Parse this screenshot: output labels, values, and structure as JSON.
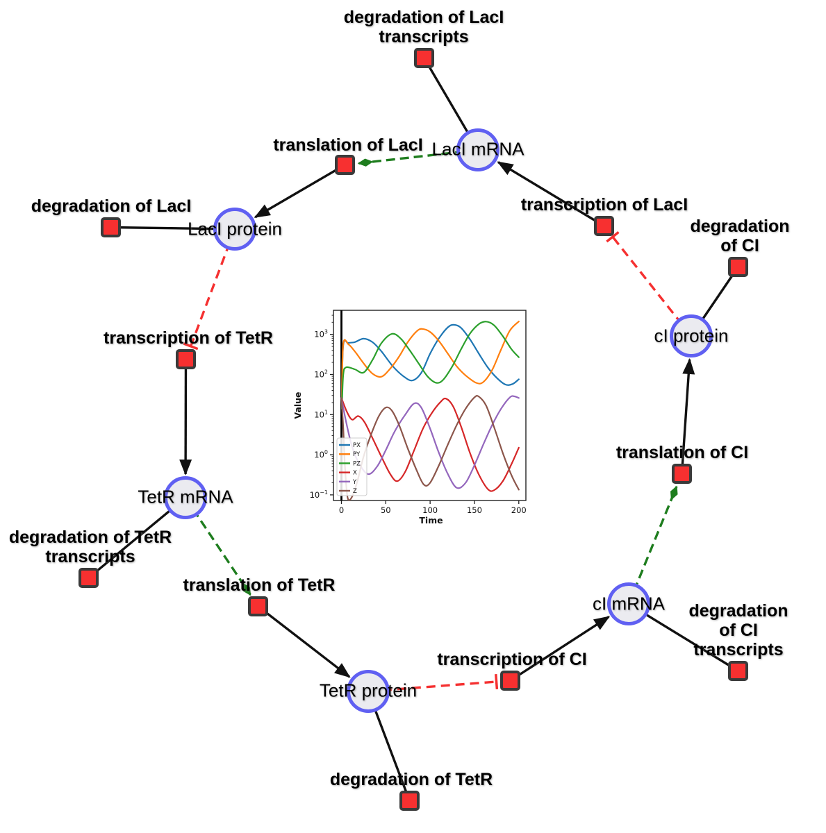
{
  "diagram": {
    "species": {
      "lacI_mRNA": {
        "label": "LacI mRNA"
      },
      "lacI_protein": {
        "label": "LacI protein"
      },
      "tetR_mRNA": {
        "label": "TetR mRNA"
      },
      "tetR_protein": {
        "label": "TetR protein"
      },
      "cI_mRNA": {
        "label": "cI mRNA"
      },
      "cI_protein": {
        "label": "cI protein"
      }
    },
    "reactions": {
      "deg_lacI_tr": {
        "label": "degradation of LacI\ntranscripts"
      },
      "transl_lacI": {
        "label": "translation of LacI"
      },
      "deg_lacI": {
        "label": "degradation of LacI"
      },
      "transc_lacI": {
        "label": "transcription of LacI"
      },
      "deg_cI": {
        "label": "degradation of CI"
      },
      "transc_tetR": {
        "label": "transcription of TetR"
      },
      "deg_tetR_tr": {
        "label": "degradation of TetR\ntranscripts"
      },
      "transl_tetR": {
        "label": "translation of TetR"
      },
      "deg_tetR": {
        "label": "degradation of TetR"
      },
      "transc_cI": {
        "label": "transcription of CI"
      },
      "deg_cI_tr": {
        "label": "degradation of CI\ntranscripts"
      },
      "transl_cI": {
        "label": "translation of CI"
      }
    },
    "edges": [
      {
        "source": "lacI_mRNA",
        "target": "deg_lacI_tr",
        "type": "reactant"
      },
      {
        "source": "lacI_mRNA",
        "target": "transl_lacI",
        "type": "modifier"
      },
      {
        "source": "transl_lacI",
        "target": "lacI_protein",
        "type": "product"
      },
      {
        "source": "transc_lacI",
        "target": "lacI_mRNA",
        "type": "product"
      },
      {
        "source": "lacI_protein",
        "target": "deg_lacI",
        "type": "reactant"
      },
      {
        "source": "lacI_protein",
        "target": "transc_tetR",
        "type": "inhibition"
      },
      {
        "source": "transc_tetR",
        "target": "tetR_mRNA",
        "type": "product"
      },
      {
        "source": "tetR_mRNA",
        "target": "deg_tetR_tr",
        "type": "reactant"
      },
      {
        "source": "tetR_mRNA",
        "target": "transl_tetR",
        "type": "modifier"
      },
      {
        "source": "transl_tetR",
        "target": "tetR_protein",
        "type": "product"
      },
      {
        "source": "tetR_protein",
        "target": "deg_tetR",
        "type": "reactant"
      },
      {
        "source": "tetR_protein",
        "target": "transc_cI",
        "type": "inhibition"
      },
      {
        "source": "transc_cI",
        "target": "cI_mRNA",
        "type": "product"
      },
      {
        "source": "cI_mRNA",
        "target": "deg_cI_tr",
        "type": "reactant"
      },
      {
        "source": "cI_mRNA",
        "target": "transl_cI",
        "type": "modifier"
      },
      {
        "source": "transl_cI",
        "target": "cI_protein",
        "type": "product"
      },
      {
        "source": "cI_protein",
        "target": "deg_cI",
        "type": "reactant"
      },
      {
        "source": "cI_protein",
        "target": "transc_lacI",
        "type": "inhibition"
      }
    ],
    "colors": {
      "species_fill": "#ebebf0",
      "species_border": "#6060f2",
      "reaction_fill": "#f73030",
      "reaction_border": "#3a3a3a",
      "edge_black": "#111111",
      "modifier_green": "#1e7d1e",
      "inhibition_red": "#f53030",
      "background": "#ffffff"
    }
  },
  "chart_data": {
    "type": "line",
    "title": "",
    "xlabel": "Time",
    "ylabel": "Value",
    "y_scale": "log",
    "grid": false,
    "legend_position": "lower left",
    "x_ticks": [
      "0",
      "50",
      "100",
      "150",
      "200"
    ],
    "y_tick_exponents": [
      "−1",
      "0",
      "1",
      "2",
      "3"
    ],
    "x_range": [
      -9,
      208
    ],
    "y_log_range": [
      -1.14,
      3.6
    ],
    "initial_spike_at_x": 0,
    "series": [
      {
        "name": "PX",
        "color": "#1f77b4",
        "points": [
          [
            0.5,
            18
          ],
          [
            2,
            520
          ],
          [
            8,
            610
          ],
          [
            15,
            640
          ],
          [
            25,
            780
          ],
          [
            35,
            640
          ],
          [
            45,
            380
          ],
          [
            58,
            160
          ],
          [
            70,
            90
          ],
          [
            80,
            71
          ],
          [
            90,
            110
          ],
          [
            100,
            330
          ],
          [
            110,
            800
          ],
          [
            120,
            1500
          ],
          [
            127,
            1730
          ],
          [
            135,
            1450
          ],
          [
            145,
            750
          ],
          [
            155,
            330
          ],
          [
            165,
            150
          ],
          [
            175,
            83
          ],
          [
            185,
            56
          ],
          [
            193,
            58
          ],
          [
            200,
            76
          ]
        ]
      },
      {
        "name": "PY",
        "color": "#ff7f0e",
        "points": [
          [
            0.5,
            18
          ],
          [
            2,
            560
          ],
          [
            8,
            560
          ],
          [
            15,
            380
          ],
          [
            25,
            190
          ],
          [
            35,
            105
          ],
          [
            45,
            88
          ],
          [
            55,
            140
          ],
          [
            65,
            280
          ],
          [
            75,
            650
          ],
          [
            85,
            1200
          ],
          [
            91,
            1370
          ],
          [
            100,
            1150
          ],
          [
            110,
            680
          ],
          [
            120,
            330
          ],
          [
            130,
            160
          ],
          [
            140,
            95
          ],
          [
            152,
            62
          ],
          [
            160,
            65
          ],
          [
            170,
            130
          ],
          [
            180,
            420
          ],
          [
            190,
            1250
          ],
          [
            200,
            2100
          ]
        ]
      },
      {
        "name": "PZ",
        "color": "#2ca02c",
        "points": [
          [
            0.5,
            14
          ],
          [
            2,
            95
          ],
          [
            5,
            150
          ],
          [
            15,
            135
          ],
          [
            25,
            112
          ],
          [
            35,
            230
          ],
          [
            45,
            600
          ],
          [
            57,
            1030
          ],
          [
            67,
            780
          ],
          [
            77,
            400
          ],
          [
            87,
            190
          ],
          [
            97,
            90
          ],
          [
            107,
            62
          ],
          [
            115,
            75
          ],
          [
            125,
            160
          ],
          [
            135,
            430
          ],
          [
            145,
            1050
          ],
          [
            155,
            1800
          ],
          [
            163,
            2080
          ],
          [
            172,
            1700
          ],
          [
            182,
            900
          ],
          [
            192,
            420
          ],
          [
            200,
            270
          ]
        ]
      },
      {
        "name": "X",
        "color": "#d62728",
        "points": [
          [
            0,
            26
          ],
          [
            6,
            12
          ],
          [
            12,
            7.5
          ],
          [
            19,
            9.2
          ],
          [
            26,
            6.5
          ],
          [
            35,
            2.6
          ],
          [
            45,
            0.9
          ],
          [
            55,
            0.33
          ],
          [
            63,
            0.22
          ],
          [
            72,
            0.38
          ],
          [
            82,
            1.3
          ],
          [
            92,
            4.5
          ],
          [
            102,
            11
          ],
          [
            112,
            21
          ],
          [
            118,
            25
          ],
          [
            126,
            16
          ],
          [
            135,
            5
          ],
          [
            145,
            1.1
          ],
          [
            155,
            0.32
          ],
          [
            165,
            0.14
          ],
          [
            172,
            0.13
          ],
          [
            182,
            0.22
          ],
          [
            192,
            0.6
          ],
          [
            200,
            1.5
          ]
        ]
      },
      {
        "name": "Y",
        "color": "#9467bd",
        "points": [
          [
            0,
            26
          ],
          [
            5,
            7
          ],
          [
            12,
            1.6
          ],
          [
            20,
            0.6
          ],
          [
            30,
            0.33
          ],
          [
            40,
            0.5
          ],
          [
            50,
            1.3
          ],
          [
            60,
            3.8
          ],
          [
            72,
            10
          ],
          [
            82,
            19
          ],
          [
            90,
            15
          ],
          [
            100,
            4.5
          ],
          [
            110,
            1.1
          ],
          [
            120,
            0.33
          ],
          [
            130,
            0.15
          ],
          [
            140,
            0.2
          ],
          [
            150,
            0.55
          ],
          [
            160,
            1.8
          ],
          [
            170,
            5.5
          ],
          [
            180,
            14
          ],
          [
            190,
            27
          ],
          [
            195,
            28.5
          ],
          [
            200,
            26
          ]
        ]
      },
      {
        "name": "Z",
        "color": "#8c564b",
        "points": [
          [
            0,
            26
          ],
          [
            2,
            5
          ],
          [
            4,
            0.5
          ],
          [
            7,
            0.085
          ],
          [
            12,
            0.09
          ],
          [
            18,
            0.22
          ],
          [
            25,
            0.9
          ],
          [
            33,
            3
          ],
          [
            42,
            9
          ],
          [
            50,
            15
          ],
          [
            57,
            12.5
          ],
          [
            65,
            5.5
          ],
          [
            75,
            1.4
          ],
          [
            85,
            0.4
          ],
          [
            93,
            0.18
          ],
          [
            100,
            0.2
          ],
          [
            110,
            0.55
          ],
          [
            120,
            1.8
          ],
          [
            130,
            5.5
          ],
          [
            140,
            14
          ],
          [
            150,
            27
          ],
          [
            155,
            28
          ],
          [
            163,
            17
          ],
          [
            172,
            5
          ],
          [
            182,
            1.1
          ],
          [
            192,
            0.3
          ],
          [
            200,
            0.135
          ]
        ]
      }
    ]
  }
}
